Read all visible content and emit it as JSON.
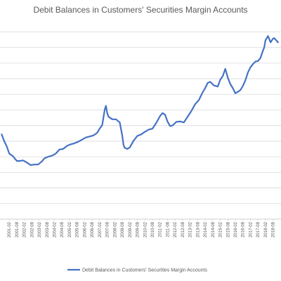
{
  "chart_data": {
    "type": "line",
    "title": "Debit Balances in Customers' Securities Margin Accounts",
    "xlabel": "",
    "ylabel": "",
    "grid": true,
    "legend_position": "bottom",
    "color": "#4472C4",
    "x_tick_labels": [
      "2001-02",
      "2001-08",
      "2002-02",
      "2002-08",
      "2003-02",
      "2003-08",
      "2004-02",
      "2004-08",
      "2005-02",
      "2005-08",
      "2006-02",
      "2006-08",
      "2007-02",
      "2007-08",
      "2008-02",
      "2008-08",
      "2009-02",
      "2009-08",
      "2010-02",
      "2010-08",
      "2011-02",
      "2011-08",
      "2012-02",
      "2012-08",
      "2013-02",
      "2013-08",
      "2014-02",
      "2014-08",
      "2015-02",
      "2015-08",
      "2016-02",
      "2016-08",
      "2017-02",
      "2017-08",
      "2018-02",
      "2018-08"
    ],
    "series": [
      {
        "name": "Debit Balances in Customers' Securities Margin Accounts",
        "x": [
          "2000-08",
          "2000-10",
          "2000-12",
          "2001-02",
          "2001-05",
          "2001-08",
          "2001-10",
          "2002-01",
          "2002-04",
          "2002-07",
          "2002-10",
          "2003-01",
          "2003-04",
          "2003-06",
          "2003-09",
          "2003-12",
          "2004-03",
          "2004-06",
          "2004-09",
          "2004-12",
          "2005-03",
          "2005-06",
          "2005-09",
          "2005-12",
          "2006-03",
          "2006-06",
          "2006-09",
          "2006-12",
          "2007-02",
          "2007-04",
          "2007-05",
          "2007-06",
          "2007-07",
          "2007-08",
          "2007-09",
          "2007-12",
          "2008-03",
          "2008-05",
          "2008-06",
          "2008-08",
          "2008-09",
          "2008-10",
          "2008-12",
          "2009-02",
          "2009-05",
          "2009-08",
          "2009-11",
          "2010-02",
          "2010-05",
          "2010-08",
          "2010-11",
          "2011-02",
          "2011-04",
          "2011-06",
          "2011-08",
          "2011-10",
          "2011-12",
          "2012-03",
          "2012-06",
          "2012-09",
          "2012-12",
          "2013-03",
          "2013-06",
          "2013-09",
          "2013-12",
          "2014-02",
          "2014-04",
          "2014-06",
          "2014-09",
          "2014-12",
          "2015-02",
          "2015-04",
          "2015-06",
          "2015-08",
          "2015-10",
          "2015-12",
          "2016-02",
          "2016-04",
          "2016-06",
          "2016-08",
          "2016-10",
          "2016-12",
          "2017-02",
          "2017-04",
          "2017-06",
          "2017-08",
          "2017-10",
          "2017-12",
          "2018-01",
          "2018-02",
          "2018-04",
          "2018-06",
          "2018-08",
          "2018-09",
          "2018-12"
        ],
        "values": [
          8.15,
          7.5,
          7.0,
          6.3,
          6.05,
          5.6,
          5.6,
          5.65,
          5.45,
          5.2,
          5.25,
          5.25,
          5.55,
          5.85,
          6.0,
          6.1,
          6.3,
          6.7,
          6.75,
          7.05,
          7.2,
          7.3,
          7.45,
          7.65,
          7.85,
          7.95,
          8.05,
          8.3,
          8.7,
          9.05,
          9.8,
          10.5,
          10.9,
          10.2,
          9.85,
          9.6,
          9.6,
          9.4,
          9.3,
          8.0,
          7.1,
          6.85,
          6.75,
          6.9,
          7.55,
          8.0,
          8.15,
          8.4,
          8.6,
          8.7,
          9.25,
          9.9,
          10.2,
          10.05,
          9.4,
          8.95,
          9.0,
          9.35,
          9.4,
          9.3,
          9.85,
          10.4,
          11.05,
          11.45,
          12.2,
          12.6,
          13.1,
          13.2,
          12.85,
          12.75,
          13.4,
          13.75,
          14.45,
          13.6,
          13.0,
          12.6,
          12.1,
          12.25,
          12.4,
          12.8,
          13.35,
          14.1,
          14.6,
          14.9,
          15.15,
          15.2,
          15.5,
          16.2,
          16.5,
          17.2,
          17.6,
          17.0,
          17.35,
          17.4,
          17.0
        ]
      }
    ]
  }
}
